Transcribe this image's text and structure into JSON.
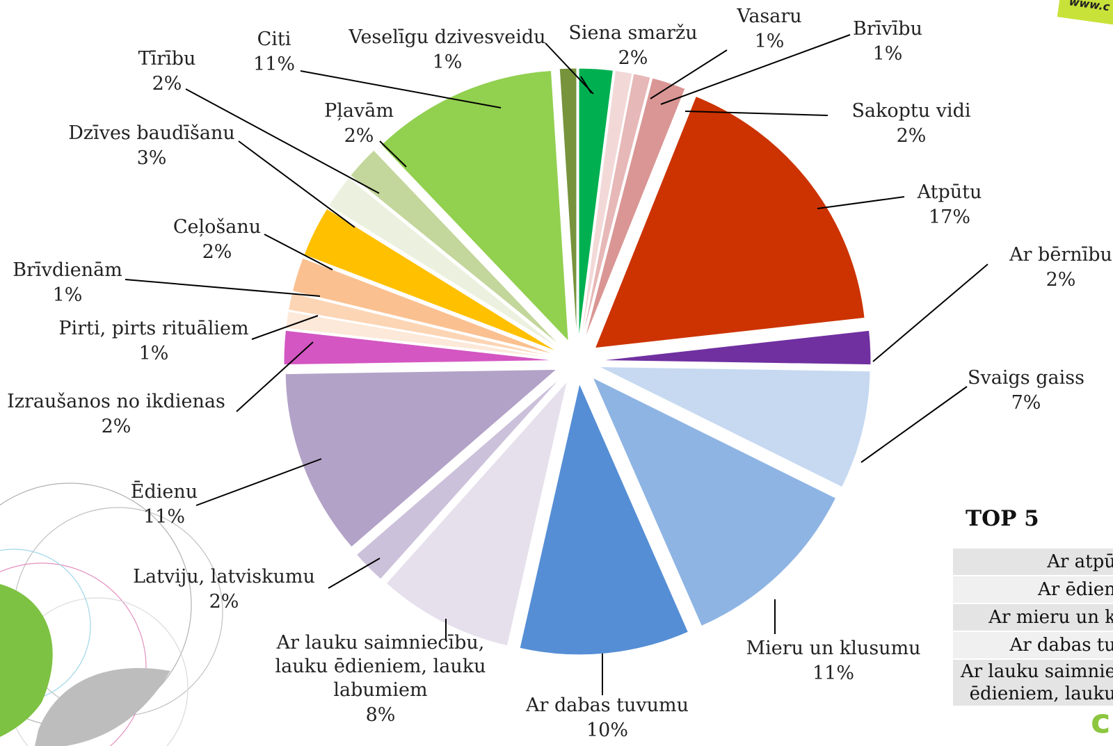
{
  "chart_data": {
    "type": "pie",
    "title": "",
    "slices": [
      {
        "label": "Siena smaržu",
        "percent_label": "2%",
        "value": 2,
        "color": "#00b050"
      },
      {
        "label": "Vasaru",
        "percent_label": "1%",
        "value": 1,
        "color": "#f2d9d8"
      },
      {
        "label": "Brīvību",
        "percent_label": "1%",
        "value": 1,
        "color": "#e6b8b7"
      },
      {
        "label": "Sakoptu vidi",
        "percent_label": "2%",
        "value": 2,
        "color": "#d99694"
      },
      {
        "label": "Atpūtu",
        "percent_label": "17%",
        "value": 17,
        "color": "#cc3300"
      },
      {
        "label": "Ar bērnību",
        "percent_label": "2%",
        "value": 2,
        "color": "#7030a0"
      },
      {
        "label": "Svaigs gaiss",
        "percent_label": "7%",
        "value": 7,
        "color": "#c6d9f1"
      },
      {
        "label": "Mieru un klusumu",
        "percent_label": "11%",
        "value": 11,
        "color": "#8eb4e3"
      },
      {
        "label": "Ar dabas tuvumu",
        "percent_label": "10%",
        "value": 10,
        "color": "#558ed5"
      },
      {
        "label": "Ar lauku saimniecību, lauku ēdieniem, lauku labumiem",
        "percent_label": "8%",
        "value": 8,
        "color": "#e6e0ec"
      },
      {
        "label": "Latviju, latviskumu",
        "percent_label": "2%",
        "value": 2,
        "color": "#ccc1da"
      },
      {
        "label": "Ēdienu",
        "percent_label": "11%",
        "value": 11,
        "color": "#b3a2c7"
      },
      {
        "label": "Izraušanos no ikdienas",
        "percent_label": "2%",
        "value": 2,
        "color": "#d456c2"
      },
      {
        "label": "Pirti, pirts rituāliem",
        "percent_label": "1%",
        "value": 1,
        "color": "#fde9d9"
      },
      {
        "label": "Brīvdienām",
        "percent_label": "1%",
        "value": 1,
        "color": "#fcd5b5"
      },
      {
        "label": "Ceļošanu",
        "percent_label": "2%",
        "value": 2,
        "color": "#fac090"
      },
      {
        "label": "Dzīves baudīšanu",
        "percent_label": "3%",
        "value": 3,
        "color": "#ffc000"
      },
      {
        "label": "Tīrību",
        "percent_label": "2%",
        "value": 2,
        "color": "#ebf1de"
      },
      {
        "label": "Pļavām",
        "percent_label": "2%",
        "value": 2,
        "color": "#c3d69b"
      },
      {
        "label": "Citi",
        "percent_label": "11%",
        "value": 11,
        "color": "#92d050"
      },
      {
        "label": "Veselīgu dzivesveidu",
        "percent_label": "1%",
        "value": 1,
        "color": "#77933c"
      }
    ]
  },
  "top5": {
    "title": "TOP 5",
    "rows": [
      "Ar atpū",
      "Ar ēdien",
      "Ar mieru un k",
      "Ar dabas tu"
    ],
    "last_row": [
      "Ar lauku saimnie",
      "ēdieniem, lauku"
    ]
  },
  "corner_tag": "www.c",
  "corner_logo": "c"
}
